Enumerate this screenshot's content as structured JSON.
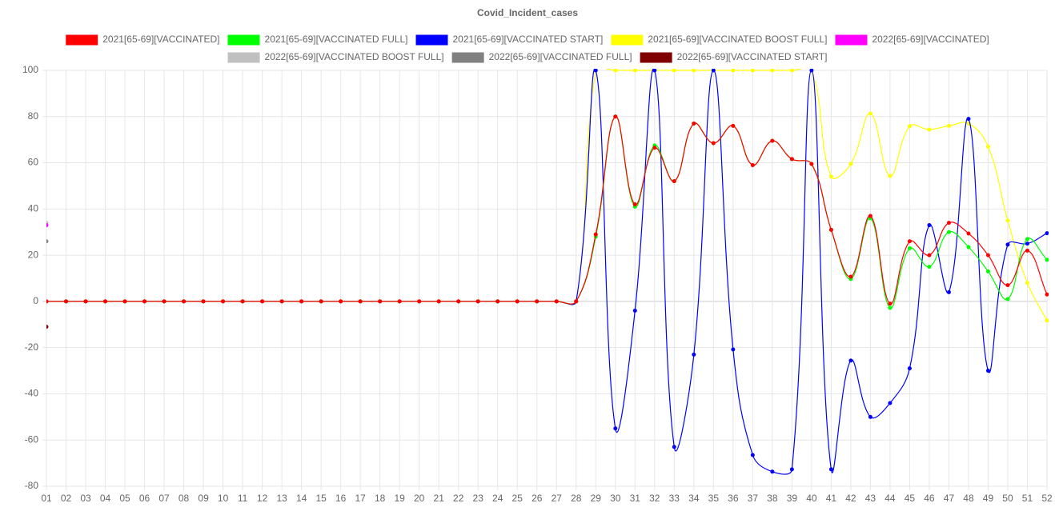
{
  "chart_data": {
    "type": "line",
    "title": "Covid_Incident_cases",
    "categories": [
      "01",
      "02",
      "03",
      "04",
      "05",
      "06",
      "07",
      "08",
      "09",
      "10",
      "11",
      "12",
      "13",
      "14",
      "15",
      "16",
      "17",
      "18",
      "19",
      "20",
      "21",
      "22",
      "23",
      "24",
      "25",
      "26",
      "27",
      "28",
      "29",
      "30",
      "31",
      "32",
      "33",
      "34",
      "35",
      "36",
      "37",
      "38",
      "39",
      "40",
      "41",
      "42",
      "43",
      "44",
      "45",
      "46",
      "47",
      "48",
      "49",
      "50",
      "51",
      "52"
    ],
    "series": [
      {
        "name": "2021[65-69][VACCINATED]",
        "color": "#ff0000",
        "values": [
          0,
          0,
          0,
          0,
          0,
          0,
          0,
          0,
          0,
          0,
          0,
          0,
          0,
          0,
          0,
          0,
          0,
          0,
          0,
          0,
          0,
          0,
          0,
          0,
          0,
          0,
          0,
          0,
          29,
          80,
          42,
          66.5,
          52,
          77,
          68.5,
          76,
          59,
          69.5,
          61.6,
          59.5,
          31,
          10.7,
          37,
          -1,
          26,
          20,
          34,
          29.4,
          20,
          7,
          22,
          3
        ]
      },
      {
        "name": "2021[65-69][VACCINATED FULL]",
        "color": "#00ff00",
        "values": [
          0,
          0,
          0,
          0,
          0,
          0,
          0,
          0,
          0,
          0,
          0,
          0,
          0,
          0,
          0,
          0,
          0,
          0,
          0,
          0,
          0,
          0,
          0,
          0,
          0,
          0,
          0,
          0,
          28,
          80,
          41,
          67.5,
          52,
          77,
          68.5,
          76,
          59,
          69.5,
          61.6,
          59.5,
          31,
          9.7,
          36,
          -2.8,
          23,
          15,
          30,
          23.5,
          13,
          1,
          27,
          18
        ]
      },
      {
        "name": "2021[65-69][VACCINATED START]",
        "color": "#0000ff",
        "values": [
          0,
          0,
          0,
          0,
          0,
          0,
          0,
          0,
          0,
          0,
          0,
          0,
          0,
          0,
          0,
          0,
          0,
          0,
          0,
          0,
          0,
          0,
          0,
          0,
          0,
          0,
          0,
          0,
          100,
          -55,
          -4,
          100,
          -63,
          -23,
          100,
          -20.8,
          -66.5,
          -73.7,
          -72.7,
          100,
          -72.7,
          -25.6,
          -50,
          -44,
          -29,
          33,
          4,
          79,
          -30,
          24.6,
          25,
          29.5
        ]
      },
      {
        "name": "2021[65-69][VACCINATED BOOST FULL]",
        "color": "#ffff00",
        "values": [
          0,
          0,
          0,
          0,
          0,
          0,
          0,
          0,
          0,
          0,
          0,
          0,
          0,
          0,
          0,
          0,
          0,
          0,
          0,
          0,
          0,
          0,
          0,
          0,
          0,
          0,
          0,
          0,
          100,
          100,
          100,
          100,
          100,
          100,
          100,
          100,
          100,
          100,
          100,
          100,
          54,
          59.5,
          81.3,
          54.3,
          75.8,
          74.4,
          76,
          77,
          67,
          35,
          8,
          -8.3
        ]
      },
      {
        "name": "2022[65-69][VACCINATED]",
        "color": "#ff00ff",
        "values": [
          33,
          null,
          null,
          null,
          null,
          null,
          null,
          null,
          null,
          null,
          null,
          null,
          null,
          null,
          null,
          null,
          null,
          null,
          null,
          null,
          null,
          null,
          null,
          null,
          null,
          null,
          null,
          null,
          null,
          null,
          null,
          null,
          null,
          null,
          null,
          null,
          null,
          null,
          null,
          null,
          null,
          null,
          null,
          null,
          null,
          null,
          null,
          null,
          null,
          null,
          null,
          null
        ]
      },
      {
        "name": "2022[65-69][VACCINATED BOOST FULL]",
        "color": "#c0c0c0",
        "values": [
          34,
          null,
          null,
          null,
          null,
          null,
          null,
          null,
          null,
          null,
          null,
          null,
          null,
          null,
          null,
          null,
          null,
          null,
          null,
          null,
          null,
          null,
          null,
          null,
          null,
          null,
          null,
          null,
          null,
          null,
          null,
          null,
          null,
          null,
          null,
          null,
          null,
          null,
          null,
          null,
          null,
          null,
          null,
          null,
          null,
          null,
          null,
          null,
          null,
          null,
          null,
          null
        ]
      },
      {
        "name": "2022[65-69][VACCINATED FULL]",
        "color": "#808080",
        "values": [
          26,
          null,
          null,
          null,
          null,
          null,
          null,
          null,
          null,
          null,
          null,
          null,
          null,
          null,
          null,
          null,
          null,
          null,
          null,
          null,
          null,
          null,
          null,
          null,
          null,
          null,
          null,
          null,
          null,
          null,
          null,
          null,
          null,
          null,
          null,
          null,
          null,
          null,
          null,
          null,
          null,
          null,
          null,
          null,
          null,
          null,
          null,
          null,
          null,
          null,
          null,
          null
        ]
      },
      {
        "name": "2022[65-69][VACCINATED START]",
        "color": "#800000",
        "values": [
          -11,
          null,
          null,
          null,
          null,
          null,
          null,
          null,
          null,
          null,
          null,
          null,
          null,
          null,
          null,
          null,
          null,
          null,
          null,
          null,
          null,
          null,
          null,
          null,
          null,
          null,
          null,
          null,
          null,
          null,
          null,
          null,
          null,
          null,
          null,
          null,
          null,
          null,
          null,
          null,
          null,
          null,
          null,
          null,
          null,
          null,
          null,
          null,
          null,
          null,
          null,
          null
        ]
      }
    ],
    "ylim": [
      -80,
      100
    ],
    "yticks": [
      100,
      80,
      60,
      40,
      20,
      0,
      -20,
      -40,
      -60,
      -80
    ],
    "grid": true
  }
}
